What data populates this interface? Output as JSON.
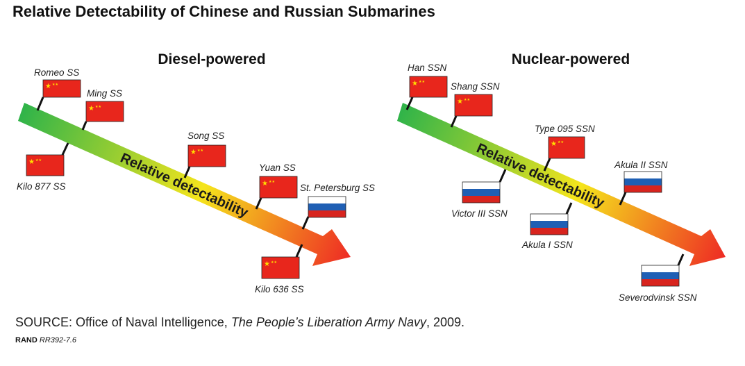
{
  "title": "Relative Detectability of Chinese and Russian Submarines",
  "panels": [
    {
      "heading": "Diesel-powered",
      "arrow_label": "Relative detectability",
      "submarines": [
        {
          "name": "Romeo SS",
          "flag": "china-flag-icon"
        },
        {
          "name": "Ming SS",
          "flag": "china-flag-icon"
        },
        {
          "name": "Kilo 877 SS",
          "flag": "china-flag-icon"
        },
        {
          "name": "Song SS",
          "flag": "china-flag-icon"
        },
        {
          "name": "Yuan SS",
          "flag": "china-flag-icon"
        },
        {
          "name": "St. Petersburg SS",
          "flag": "russia-flag-icon"
        },
        {
          "name": "Kilo 636 SS",
          "flag": "china-flag-icon"
        }
      ]
    },
    {
      "heading": "Nuclear-powered",
      "arrow_label": "Relative detectability",
      "submarines": [
        {
          "name": "Han SSN",
          "flag": "china-flag-icon"
        },
        {
          "name": "Shang SSN",
          "flag": "china-flag-icon"
        },
        {
          "name": "Type 095 SSN",
          "flag": "china-flag-icon"
        },
        {
          "name": "Victor III SSN",
          "flag": "russia-flag-icon"
        },
        {
          "name": "Akula I SSN",
          "flag": "russia-flag-icon"
        },
        {
          "name": "Akula II SSN",
          "flag": "russia-flag-icon"
        },
        {
          "name": "Severodvinsk SSN",
          "flag": "russia-flag-icon"
        }
      ]
    }
  ],
  "source": {
    "prefix": "SOURCE: Office of Naval Intelligence, ",
    "publication": "The People’s Liberation Army Navy",
    "suffix": ", 2009."
  },
  "figure_id": {
    "org": "RAND",
    "code": "RR392-7.6"
  },
  "colors": {
    "arrow_start": "#2db34a",
    "arrow_mid": "#f5e51c",
    "arrow_end": "#ee2b24",
    "china_red": "#e8261c",
    "china_star": "#ffde00",
    "russia_white": "#ffffff",
    "russia_blue": "#1f5fb4",
    "russia_red": "#d8241e"
  }
}
